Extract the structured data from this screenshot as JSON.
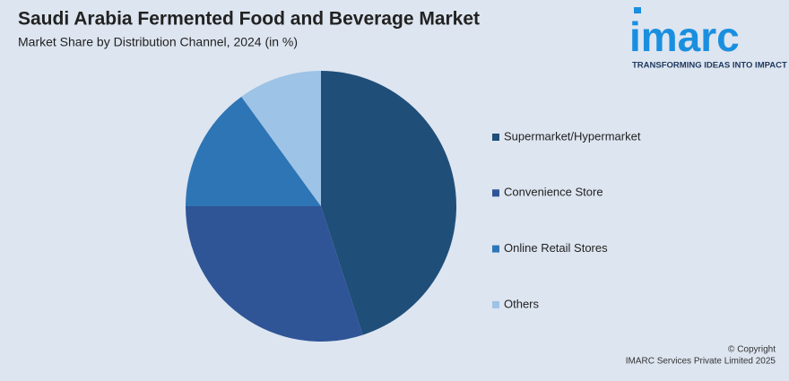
{
  "chart_data": {
    "type": "pie",
    "title": "Saudi Arabia Fermented Food and Beverage Market",
    "subtitle": "Market Share by Distribution Channel, 2024 (in %)",
    "categories": [
      "Supermarket/Hypermarket",
      "Convenience Store",
      "Online Retail Stores",
      "Others"
    ],
    "values": [
      45,
      30,
      15,
      10
    ],
    "colors": [
      "#1f4e79",
      "#2f5597",
      "#2e75b6",
      "#9dc3e6"
    ]
  },
  "logo": {
    "name": "imarc",
    "tagline": "TRANSFORMING IDEAS INTO IMPACT"
  },
  "footer": {
    "copyright": "© Copyright",
    "company": "IMARC Services Private Limited 2025"
  }
}
